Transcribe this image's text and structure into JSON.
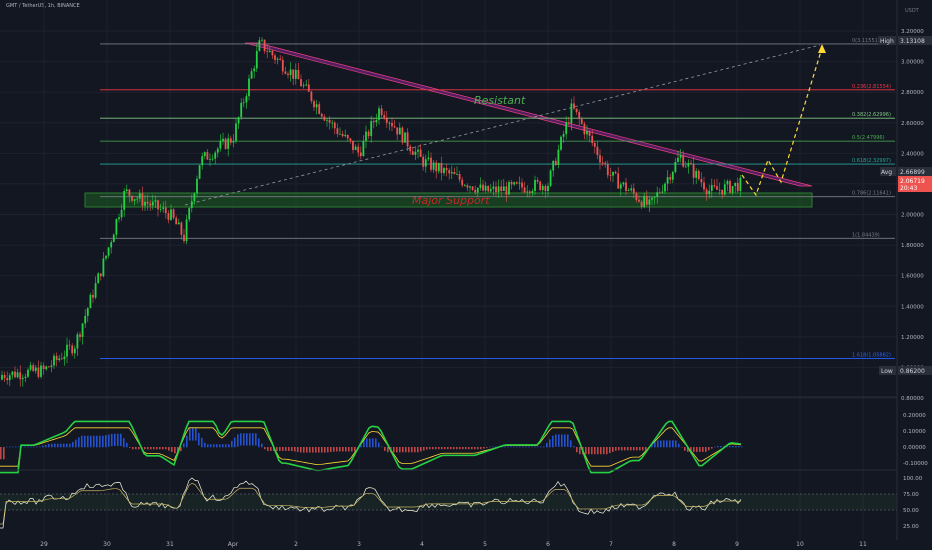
{
  "header": {
    "symbol": "GMT / TetherUS, 1h, BINANCE"
  },
  "axis_top": {
    "currency": "USDT"
  },
  "fib_levels": [
    {
      "label": "0(3.11551)",
      "value": 3.11551,
      "color": "#787b86"
    },
    {
      "label": "0.236(2.81554)",
      "value": 2.81554,
      "color": "#f23645"
    },
    {
      "label": "0.382(2.62996)",
      "value": 2.62996,
      "color": "#81c784"
    },
    {
      "label": "0.5(2.47996)",
      "value": 2.47996,
      "color": "#4caf50"
    },
    {
      "label": "0.618(2.32997)",
      "value": 2.32997,
      "color": "#26a69a"
    },
    {
      "label": "0.786(2.11641)",
      "value": 2.11641,
      "color": "#787b86"
    },
    {
      "label": "1(1.84439)",
      "value": 1.84439,
      "color": "#787b86"
    },
    {
      "label": "1.618(1.05882)",
      "value": 1.05882,
      "color": "#2962ff"
    }
  ],
  "annotations": {
    "resistant": "Resistant",
    "major_support": "Major Support"
  },
  "price_tags": {
    "high_label": "High",
    "high_value": "3.13108",
    "avg_label": "Avg",
    "avg_value": "2.66899",
    "last_value": "2.06719",
    "last_countdown": "20:43",
    "low_label": "Low",
    "low_value": "0.86200"
  },
  "price_axis_ticks": [
    "3.20000",
    "3.00000",
    "2.80000",
    "2.60000",
    "2.40000",
    "2.20000",
    "2.00000",
    "1.80000",
    "1.60000",
    "1.40000",
    "1.20000",
    "1.00000",
    "0.80000"
  ],
  "macd_axis_ticks": [
    "0.20000",
    "0.10000",
    "0.00000",
    "-0.10000"
  ],
  "rsi_axis_ticks": [
    "100.00",
    "75.00",
    "50.00",
    "25.00"
  ],
  "time_axis_ticks": [
    "29",
    "30",
    "31",
    "Apr",
    "2",
    "3",
    "4",
    "5",
    "6",
    "7",
    "8",
    "9",
    "10",
    "11"
  ],
  "colors": {
    "up": "#26a69a",
    "upbright": "#26d143",
    "down": "#ef5350",
    "resist": "#9c27b0",
    "support": "#1b5e20"
  },
  "chart_data": {
    "type": "candlestick",
    "price_unit": "USDT",
    "price_range": [
      0.8,
      3.2
    ],
    "key_points": [
      {
        "x": "29",
        "close": 0.95
      },
      {
        "x": "29.5",
        "close": 1.15
      },
      {
        "x": "30",
        "close": 1.75
      },
      {
        "x": "30.5",
        "close": 2.15
      },
      {
        "x": "31",
        "close": 2.0
      },
      {
        "x": "31.2",
        "close": 1.85
      },
      {
        "x": "31.5",
        "close": 2.35
      },
      {
        "x": "Apr",
        "close": 2.5
      },
      {
        "x": "Apr.3",
        "close": 3.12
      },
      {
        "x": "2",
        "close": 2.9
      },
      {
        "x": "2.5",
        "close": 2.6
      },
      {
        "x": "3",
        "close": 2.4
      },
      {
        "x": "3.3",
        "close": 2.7
      },
      {
        "x": "4",
        "close": 2.35
      },
      {
        "x": "5",
        "close": 2.15
      },
      {
        "x": "6",
        "close": 2.2
      },
      {
        "x": "6.3",
        "close": 2.7
      },
      {
        "x": "7",
        "close": 2.25
      },
      {
        "x": "7.5",
        "close": 2.05
      },
      {
        "x": "8",
        "close": 2.38
      },
      {
        "x": "8.5",
        "close": 2.15
      },
      {
        "x": "9",
        "close": 2.2
      }
    ],
    "indicators": [
      "MACD",
      "RSI"
    ]
  }
}
